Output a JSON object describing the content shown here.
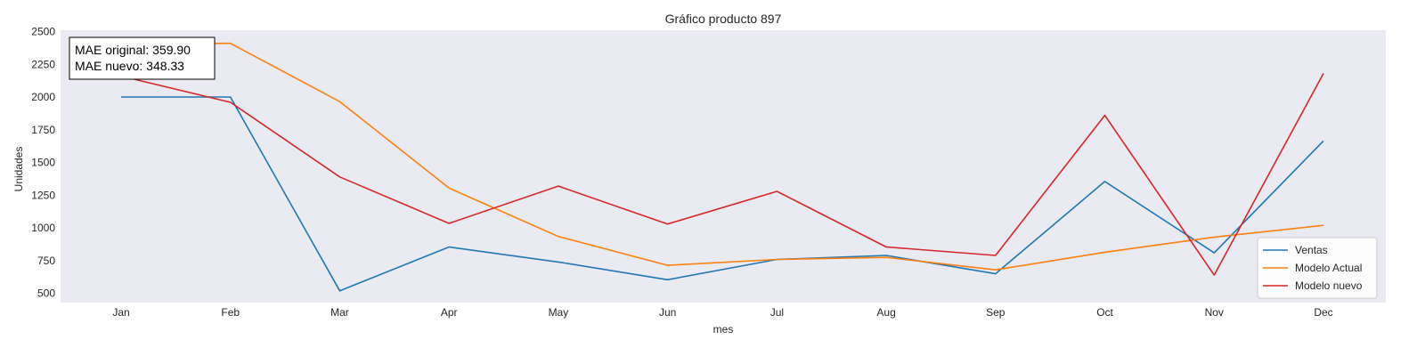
{
  "chart_data": {
    "type": "line",
    "title": "Gráfico producto 897",
    "xlabel": "mes",
    "ylabel": "Unidades",
    "categories": [
      "Jan",
      "Feb",
      "Mar",
      "Apr",
      "May",
      "Jun",
      "Jul",
      "Aug",
      "Sep",
      "Oct",
      "Nov",
      "Dec"
    ],
    "yticks": [
      500,
      750,
      1000,
      1250,
      1500,
      1750,
      2000,
      2250,
      2500
    ],
    "ylim": [
      430,
      2510
    ],
    "grid": false,
    "legend_position": "lower-right",
    "annotation": {
      "line1": "MAE original: 359.90",
      "line2": "MAE nuevo: 348.33"
    },
    "series": [
      {
        "name": "Ventas",
        "color": "#1f77b4",
        "values": [
          2000,
          2000,
          520,
          855,
          740,
          605,
          760,
          790,
          650,
          1355,
          810,
          1665
        ]
      },
      {
        "name": "Modelo Actual",
        "color": "#ff7f0e",
        "values": [
          2405,
          2410,
          1965,
          1305,
          935,
          715,
          760,
          775,
          680,
          815,
          930,
          1020
        ]
      },
      {
        "name": "Modelo nuevo",
        "color": "#d62728",
        "values": [
          2160,
          1960,
          1390,
          1035,
          1320,
          1030,
          1280,
          855,
          790,
          1860,
          640,
          2180
        ]
      }
    ]
  }
}
